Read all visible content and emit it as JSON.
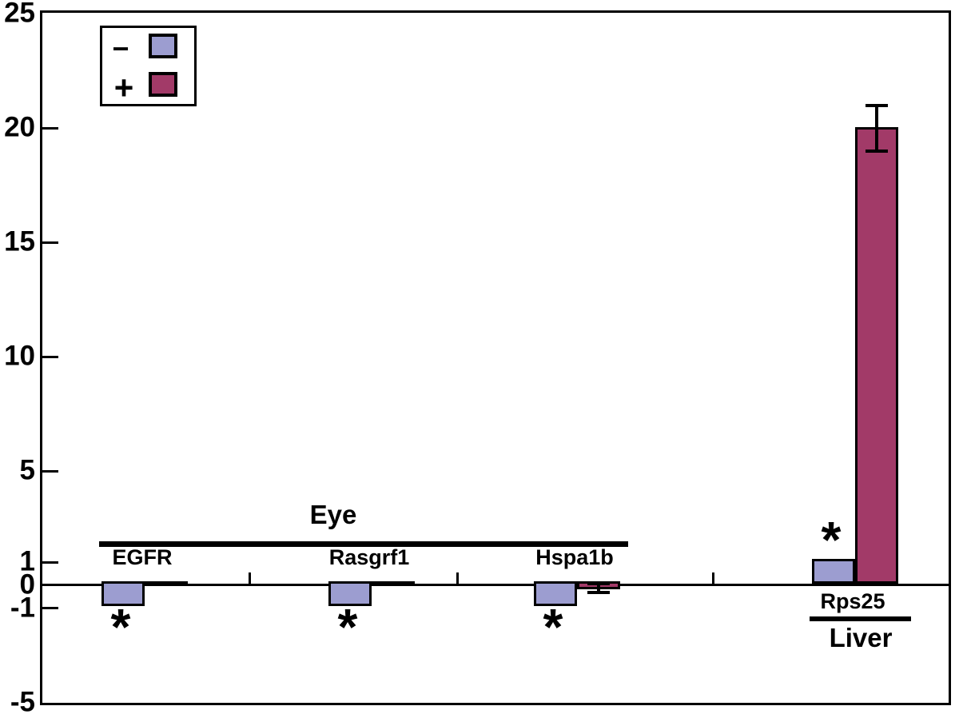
{
  "chart_data": {
    "type": "bar",
    "title": "",
    "xlabel": "",
    "ylabel": "",
    "y_axis": {
      "ticks": [
        25,
        20,
        15,
        10,
        5,
        1,
        0,
        -1,
        -5
      ],
      "top_value": 25.1,
      "bottom_value": -5.3
    },
    "legend": {
      "items": [
        {
          "symbol": "−",
          "color": "#9C9DD0"
        },
        {
          "symbol": "+",
          "color": "#A23A68"
        }
      ],
      "position": "top-left"
    },
    "sections": [
      {
        "label": "Eye",
        "genes": [
          "EGFR",
          "Rasgrf1",
          "Hspa1b"
        ]
      },
      {
        "label": "Liver",
        "genes": [
          "Rps25"
        ]
      }
    ],
    "significance_marker": "*",
    "colors": {
      "minus_fill": "#9C9DD0",
      "plus_fill": "#A23A68",
      "outline": "#000000"
    },
    "groups": [
      {
        "gene": "EGFR",
        "section": "Eye",
        "minus_value": -1.0,
        "plus_value": -0.1,
        "minus_significant": true
      },
      {
        "gene": "Rasgrf1",
        "section": "Eye",
        "minus_value": -1.0,
        "plus_value": -0.08,
        "minus_significant": true
      },
      {
        "gene": "Hspa1b",
        "section": "Eye",
        "minus_value": -1.0,
        "plus_value": -0.25,
        "plus_error": 0.2,
        "minus_significant": true
      },
      {
        "gene": "Rps25",
        "section": "Liver",
        "minus_value": 1.0,
        "plus_value": 20.0,
        "plus_error": 1.0,
        "minus_significant": true
      }
    ],
    "grid": false
  }
}
